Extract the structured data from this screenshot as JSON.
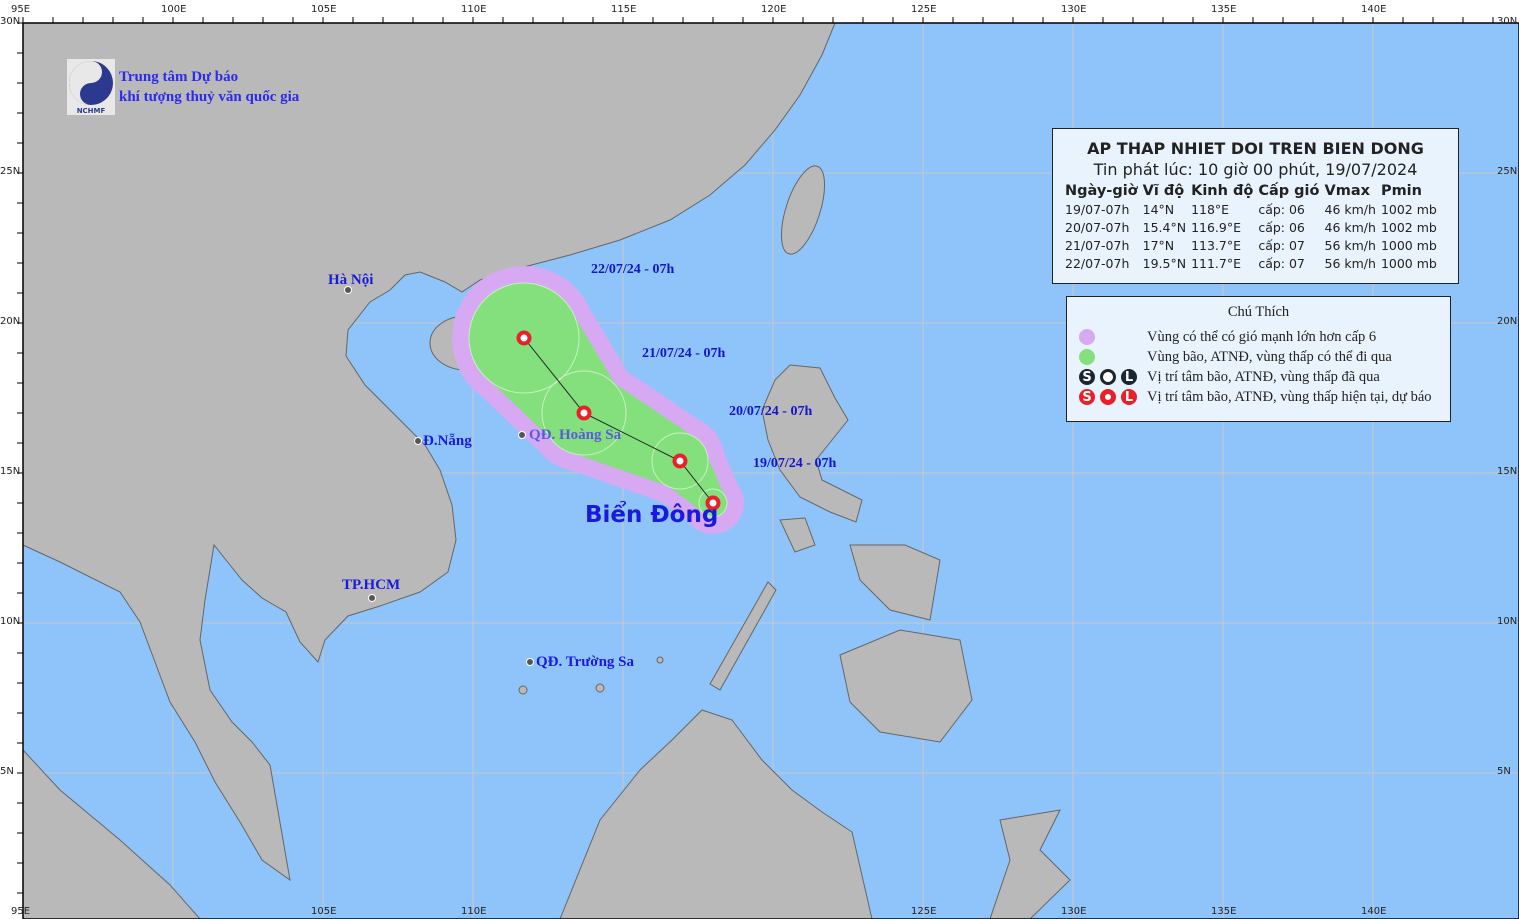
{
  "colors": {
    "ocean": "#8fc4fa",
    "land": "#b9b9b9",
    "cone_outer": "#d6a9f2",
    "cone_inner": "#84e07c",
    "track_marker": "#e8202a",
    "label_blue": "#1a1adf"
  },
  "logo": {
    "text": "NCHMF",
    "line1": "Trung tâm Dự báo",
    "line2": "khí tượng thuỷ văn quốc gia"
  },
  "axes": {
    "top": [
      "95E",
      "100E",
      "105E",
      "110E",
      "115E",
      "120E",
      "125E",
      "130E",
      "135E",
      "140E"
    ],
    "bottom": [
      "95E",
      "105E",
      "110E",
      "125E",
      "130E",
      "135E",
      "140E"
    ],
    "left": [
      "30N",
      "25N",
      "20N",
      "15N",
      "10N",
      "5N"
    ],
    "right": [
      "30N",
      "25N",
      "20N",
      "15N",
      "10N",
      "5N"
    ]
  },
  "info": {
    "title": "AP THAP NHIET DOI TREN BIEN DONG",
    "subtitle": "Tin phát lúc: 10 giờ 00 phút, 19/07/2024",
    "headers": [
      "Ngày-giờ",
      "Vĩ độ",
      "Kinh độ",
      "Cấp gió",
      "Vmax",
      "Pmin"
    ],
    "rows": [
      [
        "19/07-07h",
        "14°N",
        "118°E",
        "cấp: 06",
        "46 km/h",
        "1002 mb"
      ],
      [
        "20/07-07h",
        "15.4°N",
        "116.9°E",
        "cấp: 06",
        "46 km/h",
        "1002 mb"
      ],
      [
        "21/07-07h",
        "17°N",
        "113.7°E",
        "cấp: 07",
        "56 km/h",
        "1000 mb"
      ],
      [
        "22/07-07h",
        "19.5°N",
        "111.7°E",
        "cấp: 07",
        "56 km/h",
        "1000 mb"
      ]
    ]
  },
  "legend": {
    "title": "Chú Thích",
    "items": [
      "Vùng có thể có gió mạnh lớn hơn cấp 6",
      "Vùng bão, ATNĐ, vùng thấp có thể đi qua",
      "Vị trí tâm bão, ATNĐ, vùng thấp đã qua",
      "Vị trí tâm bão, ATNĐ, vùng thấp hiện tại, dự báo"
    ],
    "glyph_l": "L"
  },
  "track": [
    {
      "label": "19/07/24 - 07h",
      "lat": 14.0,
      "lon": 118.0
    },
    {
      "label": "20/07/24 - 07h",
      "lat": 15.4,
      "lon": 116.9
    },
    {
      "label": "21/07/24 - 07h",
      "lat": 17.0,
      "lon": 113.7
    },
    {
      "label": "22/07/24 - 07h",
      "lat": 19.5,
      "lon": 111.7
    }
  ],
  "places": {
    "hanoi": "Hà Nội",
    "danang": "Đ.Nẵng",
    "hoangsa": "QĐ. Hoàng Sa",
    "hcm": "TP.HCM",
    "truongsa": "QĐ. Trường Sa",
    "sea": "Biển Đông"
  }
}
